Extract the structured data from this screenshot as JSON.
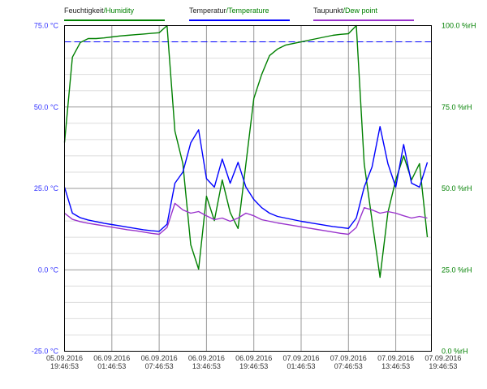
{
  "chart_data": {
    "type": "line",
    "legend": [
      {
        "de": "Feuchtigkeit",
        "en": "Humidity",
        "color": "#008000"
      },
      {
        "de": "Temperatur",
        "en": "Temperature",
        "color": "#0000ff"
      },
      {
        "de": "Taupunkt",
        "en": "Dew point",
        "color": "#9933cc"
      }
    ],
    "legend_placement": "top",
    "y_left": {
      "range": [
        -25,
        75
      ],
      "ticks": [
        "75.0 °C",
        "50.0 °C",
        "25.0 °C",
        "0.0 °C",
        "-25.0 °C"
      ],
      "color": "#3333ff"
    },
    "y_right": {
      "range": [
        0,
        100
      ],
      "ticks": [
        "100.0 %rH",
        "75.0 %rH",
        "50.0 %rH",
        "25.0 %rH",
        "0.0 %rH"
      ],
      "color": "#008000"
    },
    "x_ticks": [
      {
        "date": "05.09.2016",
        "time": "19:46:53"
      },
      {
        "date": "06.09.2016",
        "time": "01:46:53"
      },
      {
        "date": "06.09.2016",
        "time": "07:46:53"
      },
      {
        "date": "06.09.2016",
        "time": "13:46:53"
      },
      {
        "date": "06.09.2016",
        "time": "19:46:53"
      },
      {
        "date": "07.09.2016",
        "time": "01:46:53"
      },
      {
        "date": "07.09.2016",
        "time": "07:46:53"
      },
      {
        "date": "07.09.2016",
        "time": "13:46:53"
      },
      {
        "date": "07.09.2016",
        "time": "19:46:53"
      }
    ],
    "grid": true,
    "reference_line": {
      "value_c": 70,
      "color": "#0000ff",
      "style": "dashed"
    },
    "x": [
      "05.09.2016 19:46",
      "05.09.2016 20:46",
      "05.09.2016 21:46",
      "05.09.2016 22:46",
      "05.09.2016 23:46",
      "06.09.2016 00:46",
      "06.09.2016 01:46",
      "06.09.2016 02:46",
      "06.09.2016 03:46",
      "06.09.2016 04:46",
      "06.09.2016 05:46",
      "06.09.2016 06:46",
      "06.09.2016 07:46",
      "06.09.2016 08:46",
      "06.09.2016 09:46",
      "06.09.2016 10:46",
      "06.09.2016 11:46",
      "06.09.2016 12:46",
      "06.09.2016 13:46",
      "06.09.2016 14:46",
      "06.09.2016 15:46",
      "06.09.2016 16:46",
      "06.09.2016 17:46",
      "06.09.2016 18:46",
      "06.09.2016 19:46",
      "06.09.2016 20:46",
      "06.09.2016 21:46",
      "06.09.2016 22:46",
      "06.09.2016 23:46",
      "07.09.2016 00:46",
      "07.09.2016 01:46",
      "07.09.2016 02:46",
      "07.09.2016 03:46",
      "07.09.2016 04:46",
      "07.09.2016 05:46",
      "07.09.2016 06:46",
      "07.09.2016 07:46",
      "07.09.2016 08:46",
      "07.09.2016 09:46",
      "07.09.2016 10:46",
      "07.09.2016 11:46",
      "07.09.2016 12:46",
      "07.09.2016 13:46",
      "07.09.2016 14:46",
      "07.09.2016 15:46",
      "07.09.2016 16:46",
      "07.09.2016 17:46"
    ],
    "series": [
      {
        "name": "Feuchtigkeit/Humidity",
        "axis": "right",
        "unit": "%rH",
        "color": "#008000",
        "values": [
          64.1,
          90.3,
          94.8,
          96,
          96,
          96.2,
          96.5,
          96.8,
          97,
          97.2,
          97.4,
          97.6,
          97.8,
          100,
          67.6,
          57.6,
          32.7,
          25.2,
          47.6,
          40.1,
          52.6,
          42.6,
          37.7,
          57.6,
          77.6,
          85.0,
          90.8,
          92.8,
          94,
          94.5,
          95,
          95.5,
          96,
          96.5,
          97,
          97.3,
          97.5,
          100,
          57.6,
          40.1,
          22.7,
          42.6,
          52.6,
          60,
          52.6,
          57.6,
          35
        ]
      },
      {
        "name": "Temperatur/Temperature",
        "axis": "left",
        "unit": "°C",
        "color": "#0000ff",
        "values": [
          25.4,
          17.4,
          16,
          15.3,
          14.8,
          14.3,
          13.9,
          13.5,
          13.1,
          12.7,
          12.3,
          12,
          11.8,
          14,
          26.6,
          30,
          39,
          43,
          28,
          25.4,
          34,
          26.6,
          33,
          25.4,
          21.6,
          19.1,
          17.4,
          16.4,
          15.9,
          15.4,
          14.9,
          14.5,
          14.1,
          13.7,
          13.3,
          13,
          12.7,
          15.9,
          25.4,
          31.6,
          44,
          32.6,
          25.4,
          38.5,
          26.6,
          25.4,
          33
        ]
      },
      {
        "name": "Taupunkt/Dew point",
        "axis": "left",
        "unit": "°C",
        "color": "#9933cc",
        "values": [
          17.4,
          15.5,
          14.8,
          14.3,
          13.9,
          13.5,
          13.1,
          12.7,
          12.3,
          12,
          11.6,
          11.2,
          10.9,
          13,
          20.4,
          18.4,
          17.4,
          17.9,
          16.6,
          15.4,
          15.9,
          14.9,
          15.9,
          17.4,
          16.6,
          15.4,
          14.9,
          14.4,
          14,
          13.6,
          13.2,
          12.8,
          12.4,
          12,
          11.6,
          11.2,
          10.9,
          13,
          19.1,
          18.4,
          17.4,
          17.9,
          17.4,
          16.6,
          15.9,
          16.4,
          15.9
        ]
      }
    ]
  }
}
